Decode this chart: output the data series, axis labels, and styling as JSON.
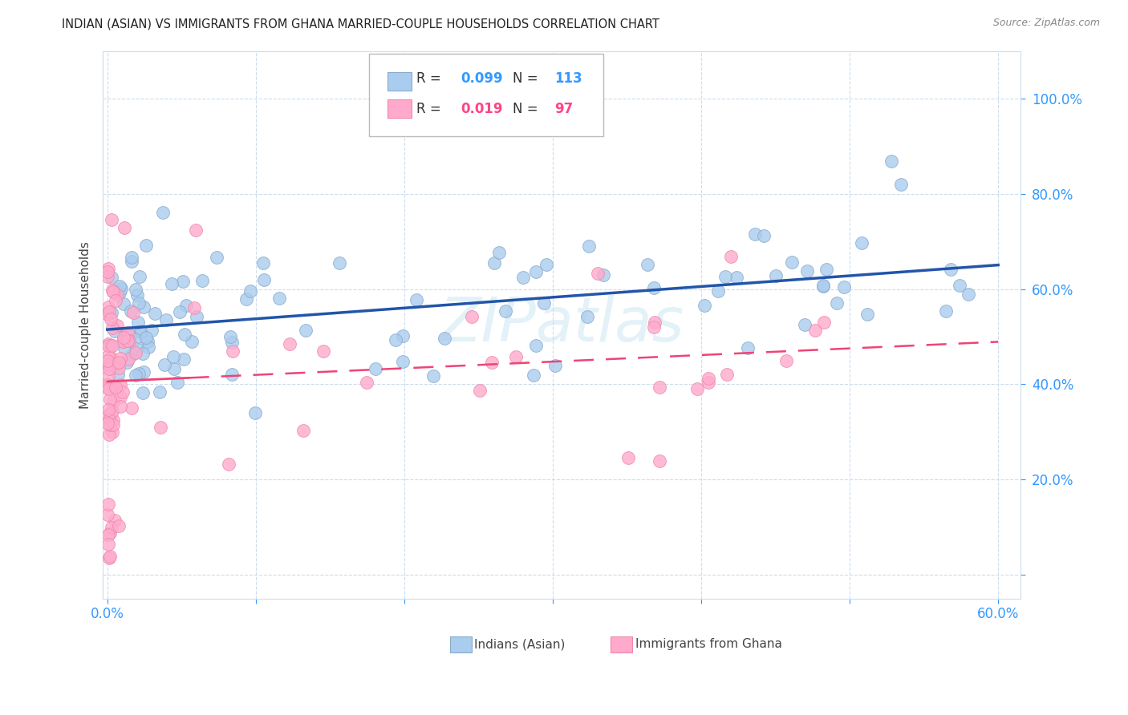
{
  "title": "INDIAN (ASIAN) VS IMMIGRANTS FROM GHANA MARRIED-COUPLE HOUSEHOLDS CORRELATION CHART",
  "source": "Source: ZipAtlas.com",
  "ylabel": "Married-couple Households",
  "R_blue": 0.099,
  "N_blue": 113,
  "R_pink": 0.019,
  "N_pink": 97,
  "watermark": "ZIPatlas",
  "blue_color": "#AACCEE",
  "blue_edge": "#88AACC",
  "pink_color": "#FFAACC",
  "pink_edge": "#EE88AA",
  "blue_line_color": "#2255AA",
  "pink_line_color": "#EE4477",
  "watermark_color": "#BBDDEE",
  "legend_blue_label": "Indians (Asian)",
  "legend_pink_label": "Immigrants from Ghana",
  "axis_tick_color": "#3399FF",
  "ylabel_color": "#444444",
  "title_color": "#222222",
  "source_color": "#888888",
  "grid_color": "#CCDDEE",
  "spine_color": "#CCDDEE",
  "xtick_labels_show": [
    "0.0%",
    "60.0%"
  ],
  "xtick_vals_show": [
    0.0,
    0.6
  ],
  "ytick_vals": [
    0.0,
    0.2,
    0.4,
    0.6,
    0.8,
    1.0
  ],
  "ytick_labels": [
    "",
    "20.0%",
    "40.0%",
    "60.0%",
    "80.0%",
    "100.0%"
  ],
  "xlim": [
    -0.003,
    0.615
  ],
  "ylim": [
    -0.05,
    1.1
  ]
}
